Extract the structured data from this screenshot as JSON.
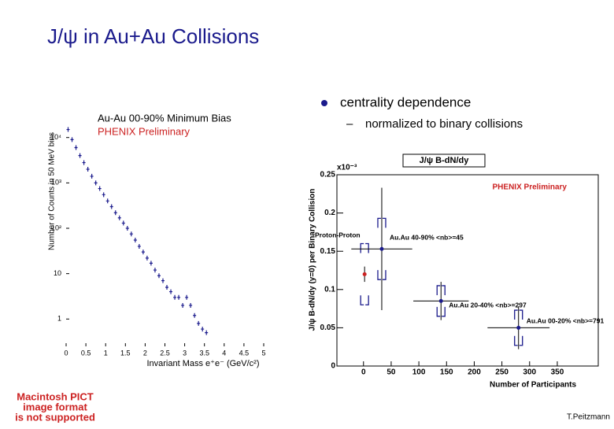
{
  "slide": {
    "title": "J/ψ in Au+Au Collisions",
    "bullets": [
      "centrality dependence",
      "normalized to binary collisions"
    ],
    "pict_notice": [
      "Macintosh PICT",
      "image format",
      "is not supported"
    ],
    "author": "T.Peitzmann"
  },
  "chart_data": [
    {
      "type": "scatter",
      "title": "Au-Au 00-90% Minimum Bias",
      "subtitle": "PHENIX Preliminary",
      "x_label": "Invariant Mass e⁺e⁻ (GeV/c²)",
      "y_label": "Number of Counts in 50 MeV bins",
      "log_y": true,
      "color": "#1a1a8c",
      "x": [
        0.05,
        0.15,
        0.25,
        0.35,
        0.45,
        0.55,
        0.65,
        0.75,
        0.85,
        0.95,
        1.05,
        1.15,
        1.25,
        1.35,
        1.45,
        1.55,
        1.65,
        1.75,
        1.85,
        1.95,
        2.05,
        2.15,
        2.25,
        2.35,
        2.45,
        2.55,
        2.65,
        2.75,
        2.85,
        2.95,
        3.05,
        3.15,
        3.25,
        3.35,
        3.45,
        3.55
      ],
      "values": [
        15000,
        9000,
        6000,
        4000,
        2800,
        2000,
        1400,
        1000,
        750,
        550,
        400,
        300,
        220,
        170,
        130,
        100,
        75,
        55,
        40,
        30,
        22,
        17,
        12,
        9,
        7,
        5,
        4,
        3,
        3,
        2,
        3,
        2,
        1.2,
        0.8,
        0.6,
        0.5
      ],
      "xlim": [
        0,
        5
      ],
      "xticks": [
        0,
        0.5,
        1,
        1.5,
        2,
        2.5,
        3,
        3.5,
        4,
        4.5,
        5
      ],
      "ylim": [
        0.25,
        40000
      ],
      "yticks": [
        1,
        10,
        {
          "value": 100,
          "label": "10²"
        },
        {
          "value": 1000,
          "label": "10³"
        },
        {
          "value": 10000,
          "label": "10⁴"
        }
      ]
    },
    {
      "type": "errorbar",
      "title": "J/ψ B-dN/dy",
      "subtitle": "PHENIX Preliminary",
      "scale_note": "x10⁻³",
      "x_label": "Number of Participants",
      "y_label": "J/ψ B-dN/dy (y=0) per Binary Collision",
      "x": [
        2,
        33,
        140,
        280
      ],
      "values": [
        0.12,
        0.153,
        0.085,
        0.05
      ],
      "yerr": [
        0.01,
        0.08,
        0.025,
        0.028
      ],
      "syserr": [
        0.04,
        0.04,
        0.02,
        0.023
      ],
      "xerr": [
        0,
        55,
        50,
        56
      ],
      "colors": [
        "#cc2222",
        "#1a1a8c",
        "#1a1a8c",
        "#1a1a8c"
      ],
      "labels": [
        "Proton-Proton",
        "Au.Au 40-90% <nb>=45",
        "Au.Au 20-40% <nb>=297",
        "Au.Au 00-20% <nb>=791"
      ],
      "xlim": [
        -48,
        424
      ],
      "xticks": [
        0,
        50,
        100,
        150,
        200,
        250,
        300,
        350
      ],
      "ylim": [
        0,
        0.25
      ],
      "yticks": [
        0,
        0.05,
        0.1,
        0.15,
        0.2,
        0.25
      ]
    }
  ]
}
